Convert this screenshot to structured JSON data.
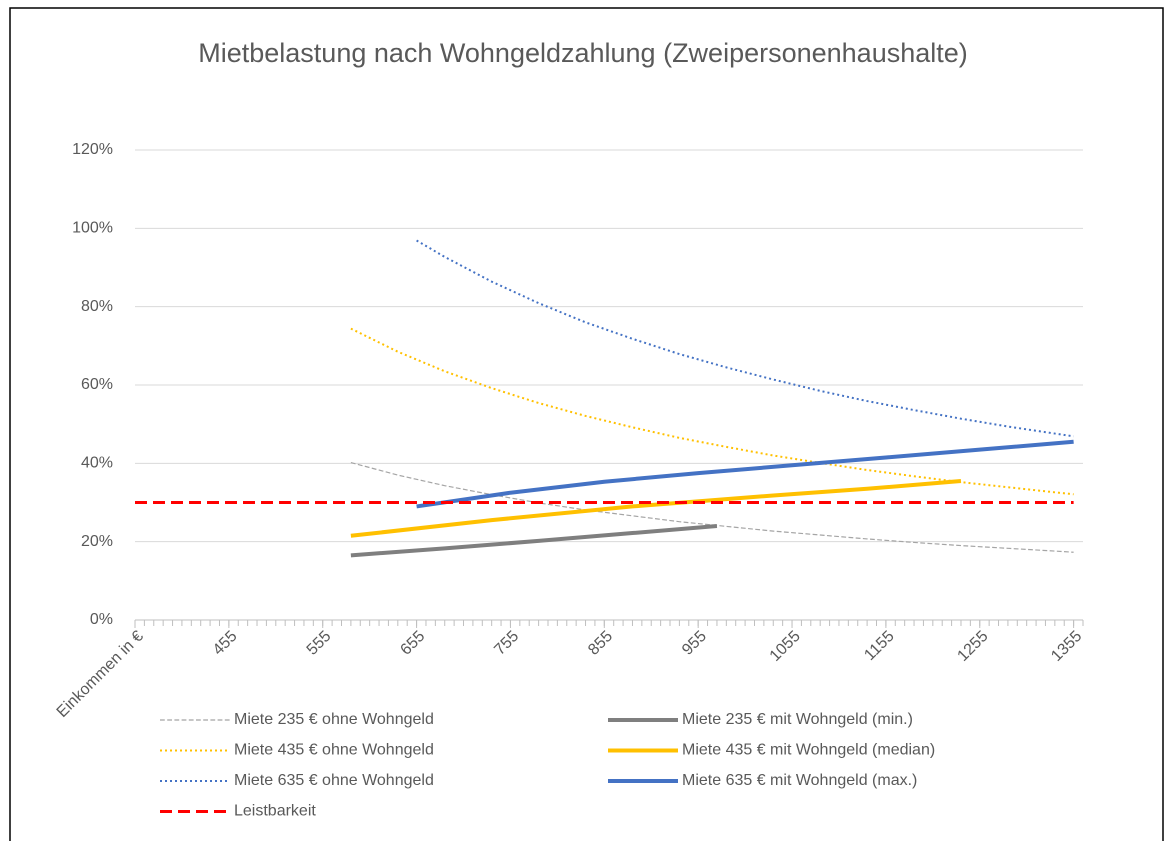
{
  "chart_data": {
    "type": "line",
    "title": "Mietbelastung nach Wohngeldzahlung (Zweipersonenhaushalte)",
    "xlim": [
      355,
      1365
    ],
    "xticks": [
      {
        "value": 355,
        "label": "Einkommen in €"
      },
      455,
      555,
      655,
      755,
      855,
      955,
      1055,
      1155,
      1255,
      1355
    ],
    "ylim": [
      0,
      120
    ],
    "yticks": [
      {
        "value": 0,
        "label": "0%"
      },
      {
        "value": 20,
        "label": "20%"
      },
      {
        "value": 40,
        "label": "40%"
      },
      {
        "value": 60,
        "label": "60%"
      },
      {
        "value": 80,
        "label": "80%"
      },
      {
        "value": 100,
        "label": "100%"
      },
      {
        "value": 120,
        "label": "120%"
      }
    ],
    "grid": true,
    "legend": "bottom",
    "series": [
      {
        "name": "Miete 235 € ohne Wohngeld",
        "color": "#a5a5a5",
        "dash": "dashed",
        "width": 1.2,
        "x": [
          585,
          635,
          685,
          735,
          785,
          835,
          885,
          935,
          985,
          1035,
          1085,
          1135,
          1185,
          1235,
          1285,
          1335,
          1355
        ],
        "values": [
          40.2,
          37.0,
          34.3,
          32.0,
          29.9,
          28.1,
          26.6,
          25.1,
          23.9,
          22.7,
          21.7,
          20.7,
          19.8,
          19.0,
          18.3,
          17.6,
          17.3
        ]
      },
      {
        "name": "Miete 235 € mit Wohngeld (min.)",
        "color": "#7f7f7f",
        "dash": "solid",
        "width": 4,
        "x": [
          585,
          685,
          785,
          885,
          975
        ],
        "values": [
          16.5,
          18.3,
          20.2,
          22.2,
          24.0
        ]
      },
      {
        "name": "Miete 435 € ohne Wohngeld",
        "color": "#ffc000",
        "dash": "dotted",
        "width": 2,
        "x": [
          585,
          635,
          685,
          735,
          785,
          835,
          885,
          935,
          985,
          1035,
          1085,
          1135,
          1185,
          1235,
          1285,
          1335,
          1355
        ],
        "values": [
          74.4,
          68.5,
          63.5,
          59.2,
          55.4,
          52.1,
          49.2,
          46.5,
          44.2,
          42.0,
          40.1,
          38.3,
          36.7,
          35.2,
          33.9,
          32.6,
          32.1
        ]
      },
      {
        "name": "Miete 435 € mit Wohngeld (median)",
        "color": "#ffc000",
        "dash": "solid",
        "width": 4,
        "x": [
          585,
          735,
          885,
          1035,
          1135,
          1235
        ],
        "values": [
          21.5,
          25.5,
          29.0,
          31.8,
          33.5,
          35.5
        ]
      },
      {
        "name": "Miete 635 € ohne Wohngeld",
        "color": "#4472c4",
        "dash": "dotted",
        "width": 2,
        "x": [
          655,
          685,
          735,
          785,
          835,
          885,
          935,
          985,
          1035,
          1085,
          1135,
          1185,
          1235,
          1285,
          1335,
          1355
        ],
        "values": [
          96.9,
          92.7,
          86.4,
          80.9,
          76.0,
          71.8,
          67.9,
          64.5,
          61.4,
          58.5,
          55.9,
          53.6,
          51.4,
          49.4,
          47.6,
          46.9
        ]
      },
      {
        "name": "Miete 635 € mit Wohngeld (max.)",
        "color": "#4472c4",
        "dash": "solid",
        "width": 4,
        "x": [
          655,
          755,
          855,
          955,
          1055,
          1155,
          1255,
          1355
        ],
        "values": [
          29.0,
          32.5,
          35.3,
          37.5,
          39.5,
          41.5,
          43.5,
          45.5
        ]
      },
      {
        "name": "Leistbarkeit",
        "color": "#ff0000",
        "dash": "dashed",
        "width": 3,
        "x": [
          355,
          1355
        ],
        "values": [
          30,
          30
        ]
      }
    ]
  }
}
